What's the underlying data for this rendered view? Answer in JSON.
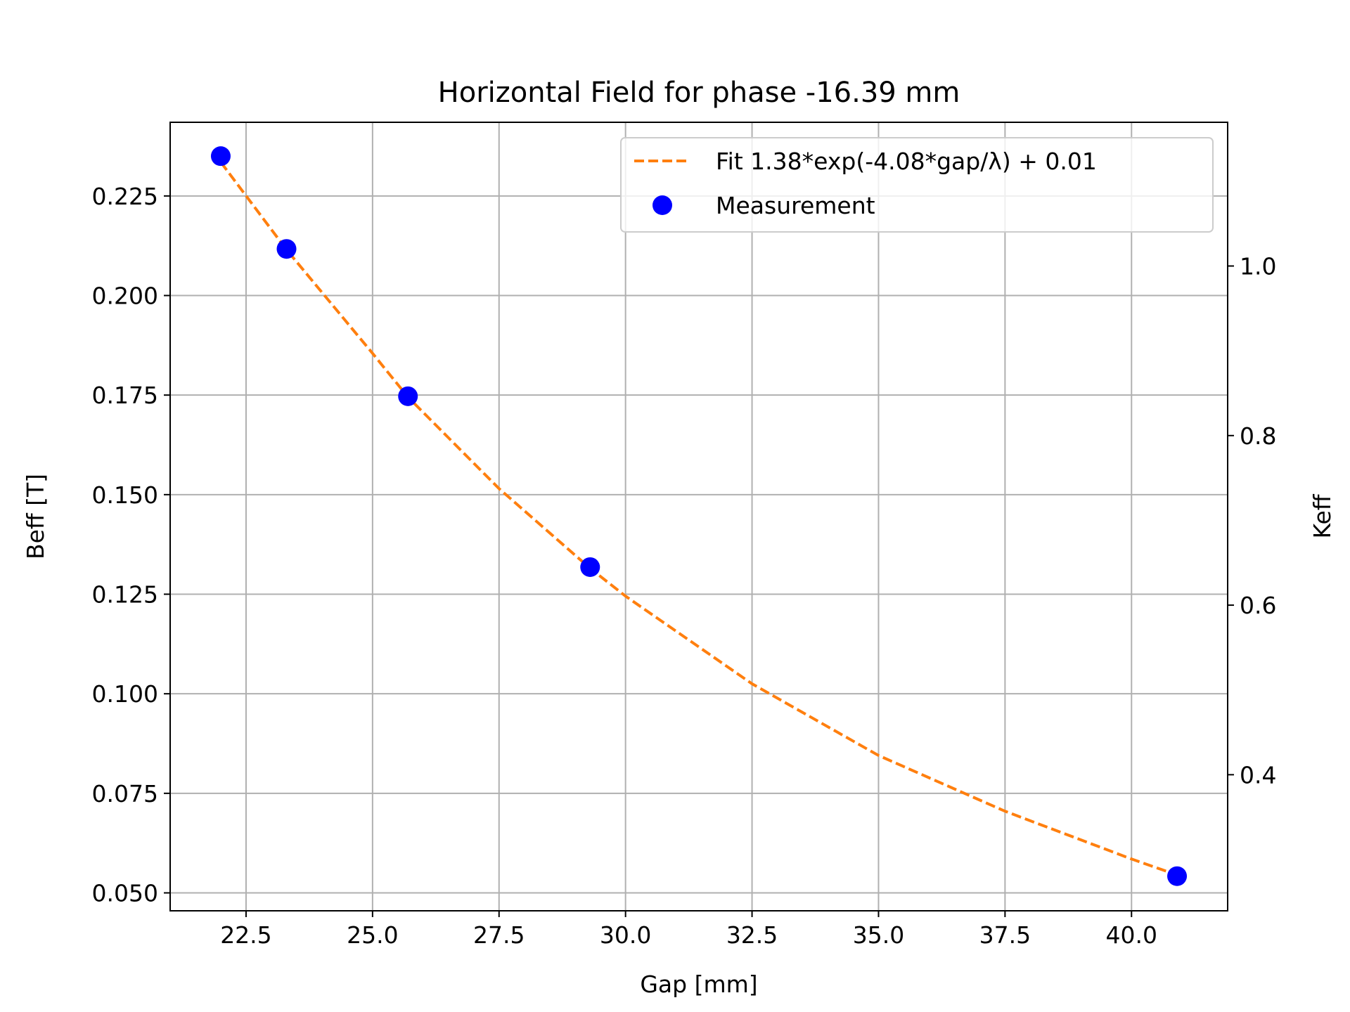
{
  "chart_data": {
    "type": "line",
    "title": "Horizontal Field for phase -16.39 mm",
    "xlabel": "Gap [mm]",
    "ylabel": "Beff [T]",
    "y2label": "Keff",
    "xlim": [
      21.0,
      41.9
    ],
    "ylim": [
      0.0455,
      0.2435
    ],
    "y2lim": [
      0.2395,
      1.1695
    ],
    "xticks": [
      "22.5",
      "25.0",
      "27.5",
      "30.0",
      "32.5",
      "35.0",
      "37.5",
      "40.0"
    ],
    "yticks": [
      "0.050",
      "0.075",
      "0.100",
      "0.125",
      "0.150",
      "0.175",
      "0.200",
      "0.225"
    ],
    "y2ticks": [
      "0.4",
      "0.6",
      "0.8",
      "1.0"
    ],
    "grid": true,
    "legend_position": "upper right",
    "colors": {
      "fit": "#ff7f0e",
      "measurement": "#0000ff",
      "grid": "#b0b0b0"
    },
    "series": [
      {
        "name": "Fit 1.38*exp(-4.08*gap/λ) + 0.01",
        "style": "dashed line",
        "x": [
          22.0,
          23.3,
          25.0,
          25.7,
          27.5,
          29.3,
          30.0,
          32.5,
          35.0,
          37.5,
          40.0,
          40.9
        ],
        "values": [
          0.2335,
          0.2115,
          0.1855,
          0.1745,
          0.1515,
          0.1315,
          0.1245,
          0.1025,
          0.0845,
          0.0705,
          0.0585,
          0.0545
        ]
      },
      {
        "name": "Measurement",
        "style": "markers",
        "x": [
          22.0,
          23.3,
          25.7,
          29.3,
          40.9
        ],
        "values": [
          0.235,
          0.2117,
          0.1747,
          0.1318,
          0.0542
        ]
      }
    ]
  }
}
